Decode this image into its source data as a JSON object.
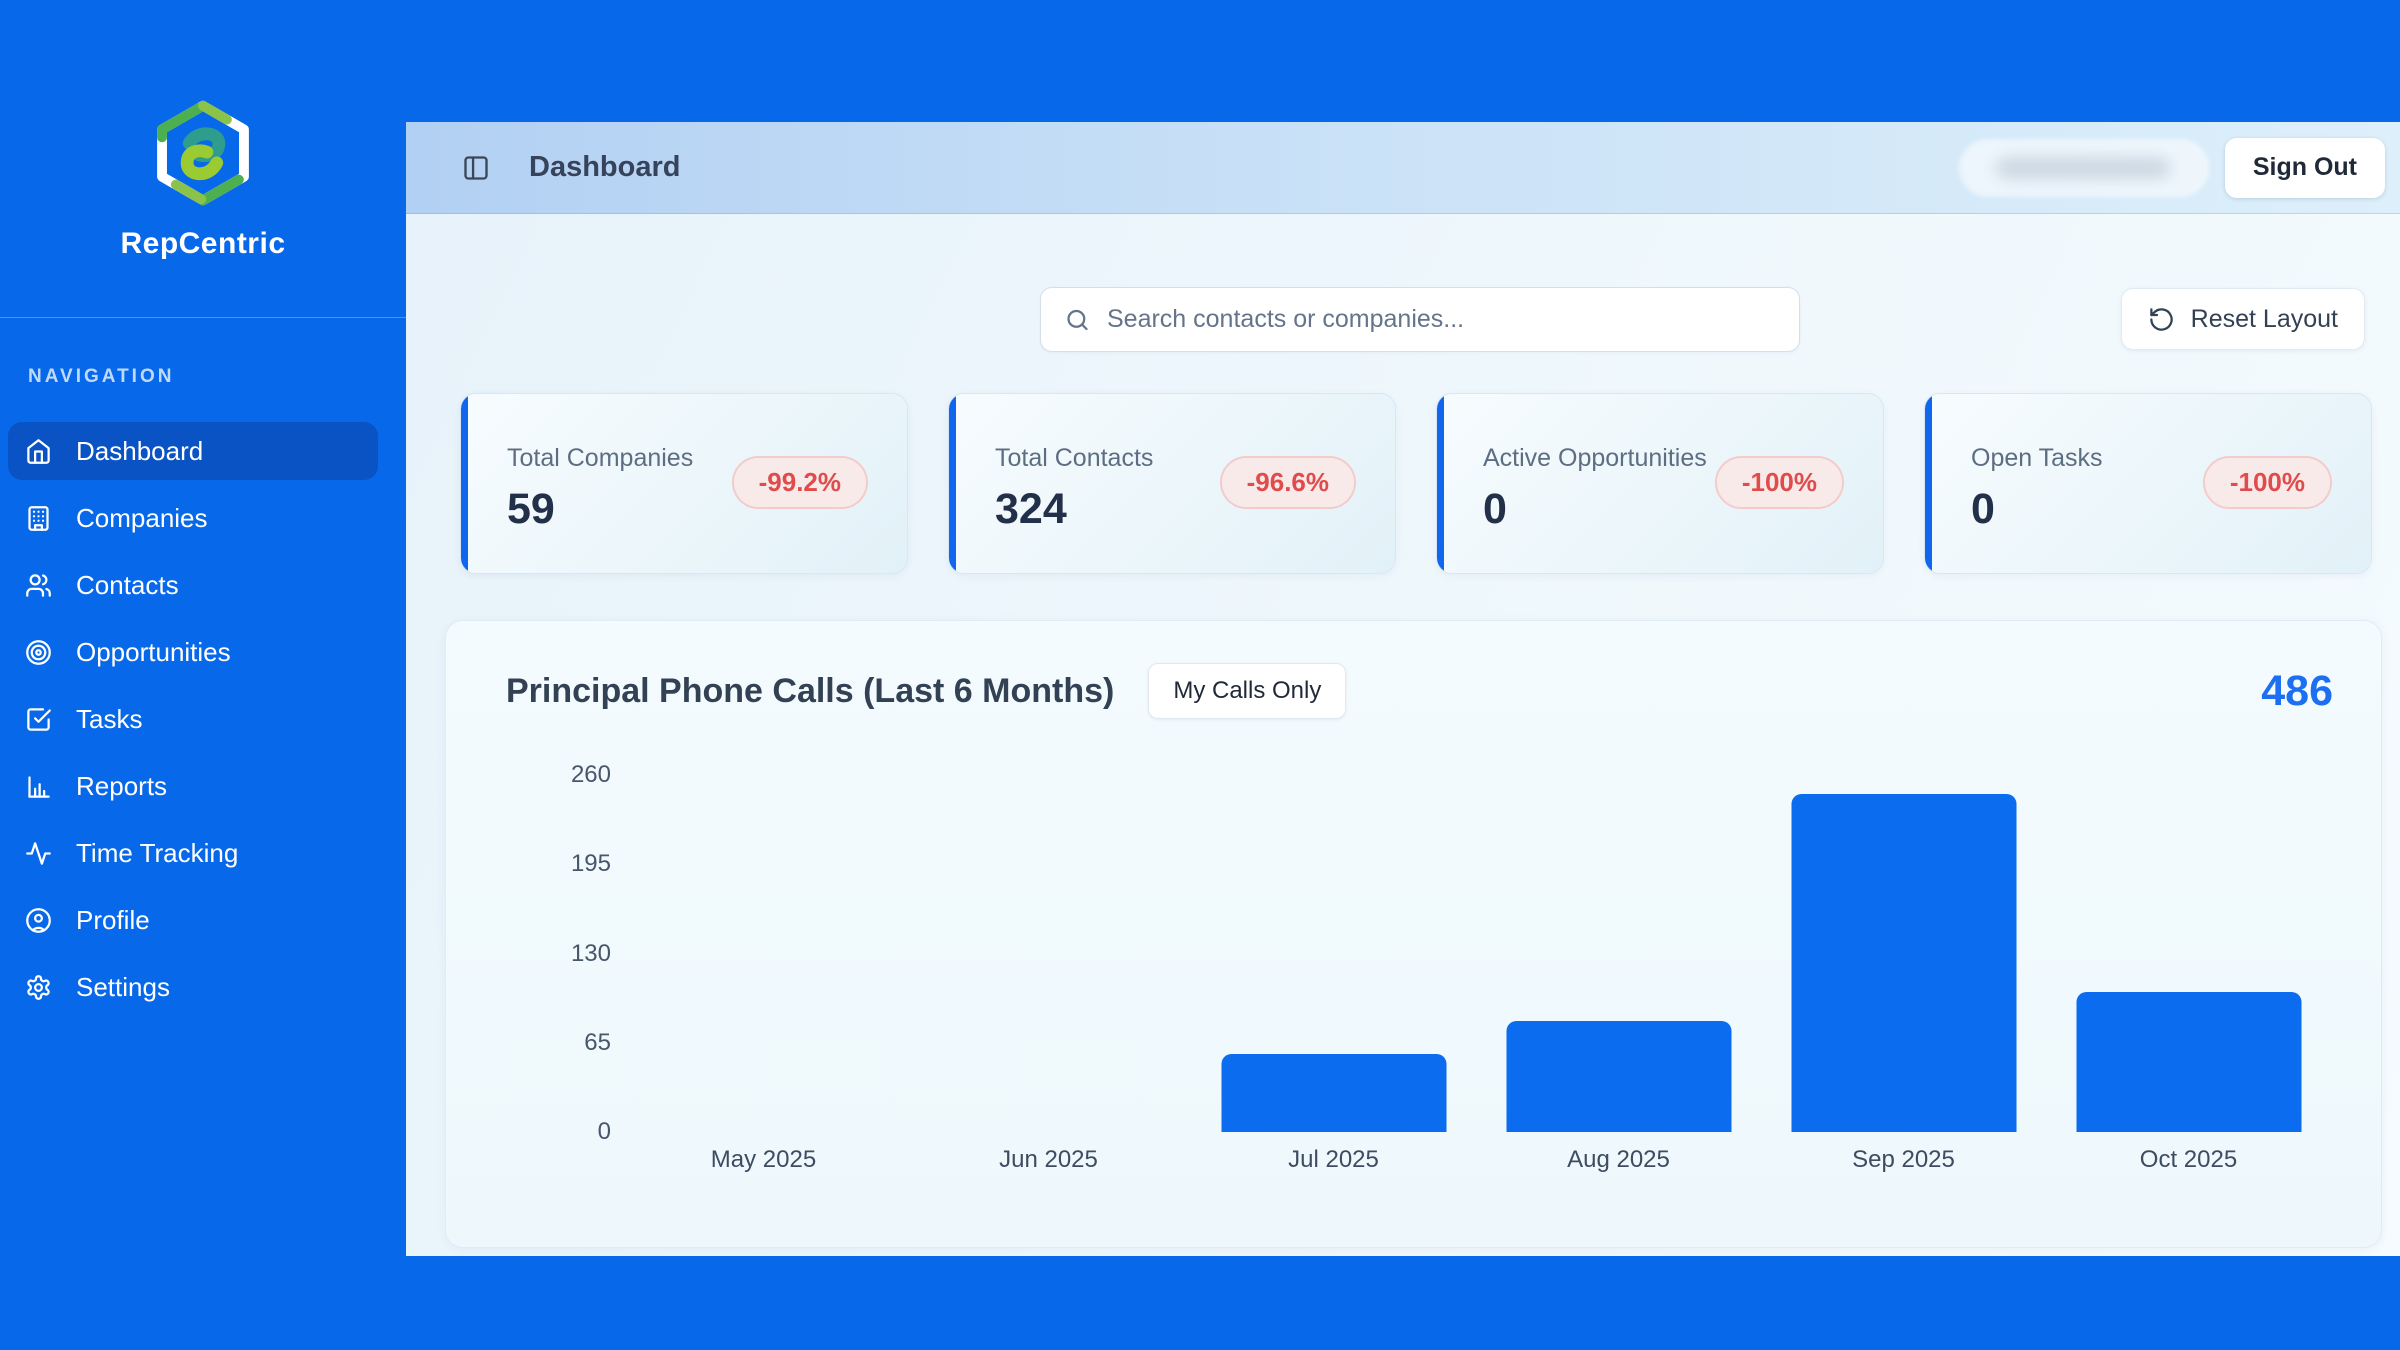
{
  "app": {
    "name": "RepCentric"
  },
  "sidebar": {
    "section_label": "NAVIGATION",
    "items": [
      {
        "label": "Dashboard",
        "icon": "home-icon",
        "active": true
      },
      {
        "label": "Companies",
        "icon": "building-icon",
        "active": false
      },
      {
        "label": "Contacts",
        "icon": "users-icon",
        "active": false
      },
      {
        "label": "Opportunities",
        "icon": "target-icon",
        "active": false
      },
      {
        "label": "Tasks",
        "icon": "check-square-icon",
        "active": false
      },
      {
        "label": "Reports",
        "icon": "bar-chart-icon",
        "active": false
      },
      {
        "label": "Time Tracking",
        "icon": "activity-icon",
        "active": false
      },
      {
        "label": "Profile",
        "icon": "user-circle-icon",
        "active": false
      },
      {
        "label": "Settings",
        "icon": "gear-icon",
        "active": false
      }
    ]
  },
  "header": {
    "title": "Dashboard",
    "sign_out_label": "Sign Out"
  },
  "toolbar": {
    "search_placeholder": "Search contacts or companies...",
    "reset_layout_label": "Reset Layout"
  },
  "stats": [
    {
      "label": "Total Companies",
      "value": "59",
      "change": "-99.2%"
    },
    {
      "label": "Total Contacts",
      "value": "324",
      "change": "-96.6%"
    },
    {
      "label": "Active Opportunities",
      "value": "0",
      "change": "-100%"
    },
    {
      "label": "Open Tasks",
      "value": "0",
      "change": "-100%"
    }
  ],
  "chart": {
    "title": "Principal Phone Calls (Last 6 Months)",
    "filter_button_label": "My Calls Only",
    "total": "486"
  },
  "chart_data": {
    "type": "bar",
    "title": "Principal Phone Calls (Last 6 Months)",
    "categories": [
      "May 2025",
      "Jun 2025",
      "Jul 2025",
      "Aug 2025",
      "Sep 2025",
      "Oct 2025"
    ],
    "values": [
      0,
      0,
      57,
      81,
      246,
      102
    ],
    "total": 486,
    "yticks": [
      0,
      65,
      130,
      195,
      260
    ],
    "ylim": [
      0,
      260
    ],
    "xlabel": "",
    "ylabel": "",
    "grid": false,
    "legend": false,
    "bar_color": "#0b6cef"
  },
  "colors": {
    "brand_blue": "#0868ea",
    "active_nav_blue": "#0a53c4",
    "bar_blue": "#0b6cef",
    "badge_red": "#e04b4b",
    "total_blue": "#1d6ff2"
  }
}
